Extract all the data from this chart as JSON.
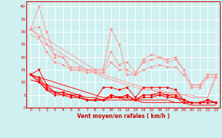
{
  "x": [
    0,
    1,
    2,
    3,
    4,
    5,
    6,
    7,
    8,
    9,
    10,
    11,
    12,
    13,
    14,
    15,
    16,
    17,
    18,
    19,
    20,
    21,
    22,
    23
  ],
  "pink_top": [
    31,
    40,
    30,
    20,
    20,
    15,
    15,
    15,
    15,
    15,
    31,
    25,
    13,
    13,
    19,
    21,
    20,
    19,
    20,
    15,
    9,
    9,
    13,
    13
  ],
  "pink_mid": [
    31,
    32,
    25,
    21,
    20,
    16,
    16,
    15,
    15,
    15,
    22,
    17,
    18,
    14,
    18,
    19,
    20,
    18,
    19,
    15,
    9,
    9,
    13,
    13
  ],
  "pink_lower": [
    31,
    28,
    22,
    18,
    17,
    15,
    15,
    14,
    14,
    14,
    18,
    15,
    15,
    13,
    15,
    16,
    17,
    16,
    16,
    13,
    8,
    8,
    12,
    12
  ],
  "diag_pink1": [
    31,
    29,
    27,
    25,
    23,
    21,
    19,
    17,
    15,
    13,
    12,
    11,
    10,
    9,
    8,
    7,
    7,
    6,
    6,
    5,
    5,
    4,
    4,
    13
  ],
  "diag_pink2": [
    29,
    27,
    25,
    23,
    21,
    19,
    17,
    15,
    14,
    12,
    11,
    10,
    9,
    8,
    7,
    7,
    6,
    6,
    5,
    5,
    4,
    4,
    4,
    12
  ],
  "red_top": [
    13,
    15,
    9,
    6,
    6,
    5,
    5,
    3,
    3,
    8,
    8,
    7,
    8,
    4,
    8,
    8,
    8,
    8,
    7,
    3,
    2,
    2,
    3,
    2
  ],
  "red_mid1": [
    13,
    12,
    8,
    6,
    6,
    5,
    4,
    3,
    3,
    3,
    5,
    4,
    5,
    3,
    5,
    5,
    6,
    5,
    5,
    3,
    2,
    2,
    3,
    2
  ],
  "red_mid2": [
    13,
    11,
    7,
    6,
    5,
    5,
    4,
    3,
    3,
    3,
    5,
    4,
    5,
    3,
    5,
    5,
    5,
    5,
    4,
    3,
    2,
    2,
    3,
    2
  ],
  "red_mid3": [
    13,
    10,
    7,
    5,
    5,
    4,
    4,
    3,
    3,
    3,
    4,
    4,
    4,
    3,
    4,
    4,
    5,
    4,
    4,
    2,
    2,
    2,
    2,
    2
  ],
  "diag_red1": [
    13,
    12,
    11,
    10,
    9,
    8,
    7,
    6,
    5,
    4,
    4,
    4,
    3,
    3,
    3,
    3,
    3,
    3,
    2,
    2,
    2,
    2,
    2,
    2
  ],
  "diag_red2": [
    11,
    10,
    9,
    8,
    7,
    6,
    5,
    4,
    4,
    3,
    3,
    3,
    3,
    3,
    2,
    2,
    2,
    2,
    2,
    2,
    1,
    1,
    1,
    1
  ],
  "bg_color": "#cff0f0",
  "pink": "#ff9999",
  "red": "#ff0000",
  "xlabel": "Vent moyen/en rafales ( km/h )",
  "xlim": [
    -0.5,
    23.5
  ],
  "ylim": [
    0,
    42
  ],
  "yticks": [
    0,
    5,
    10,
    15,
    20,
    25,
    30,
    35,
    40
  ],
  "xticks": [
    0,
    1,
    2,
    3,
    4,
    5,
    6,
    7,
    8,
    9,
    10,
    11,
    12,
    13,
    14,
    15,
    16,
    17,
    18,
    19,
    20,
    21,
    22,
    23
  ]
}
